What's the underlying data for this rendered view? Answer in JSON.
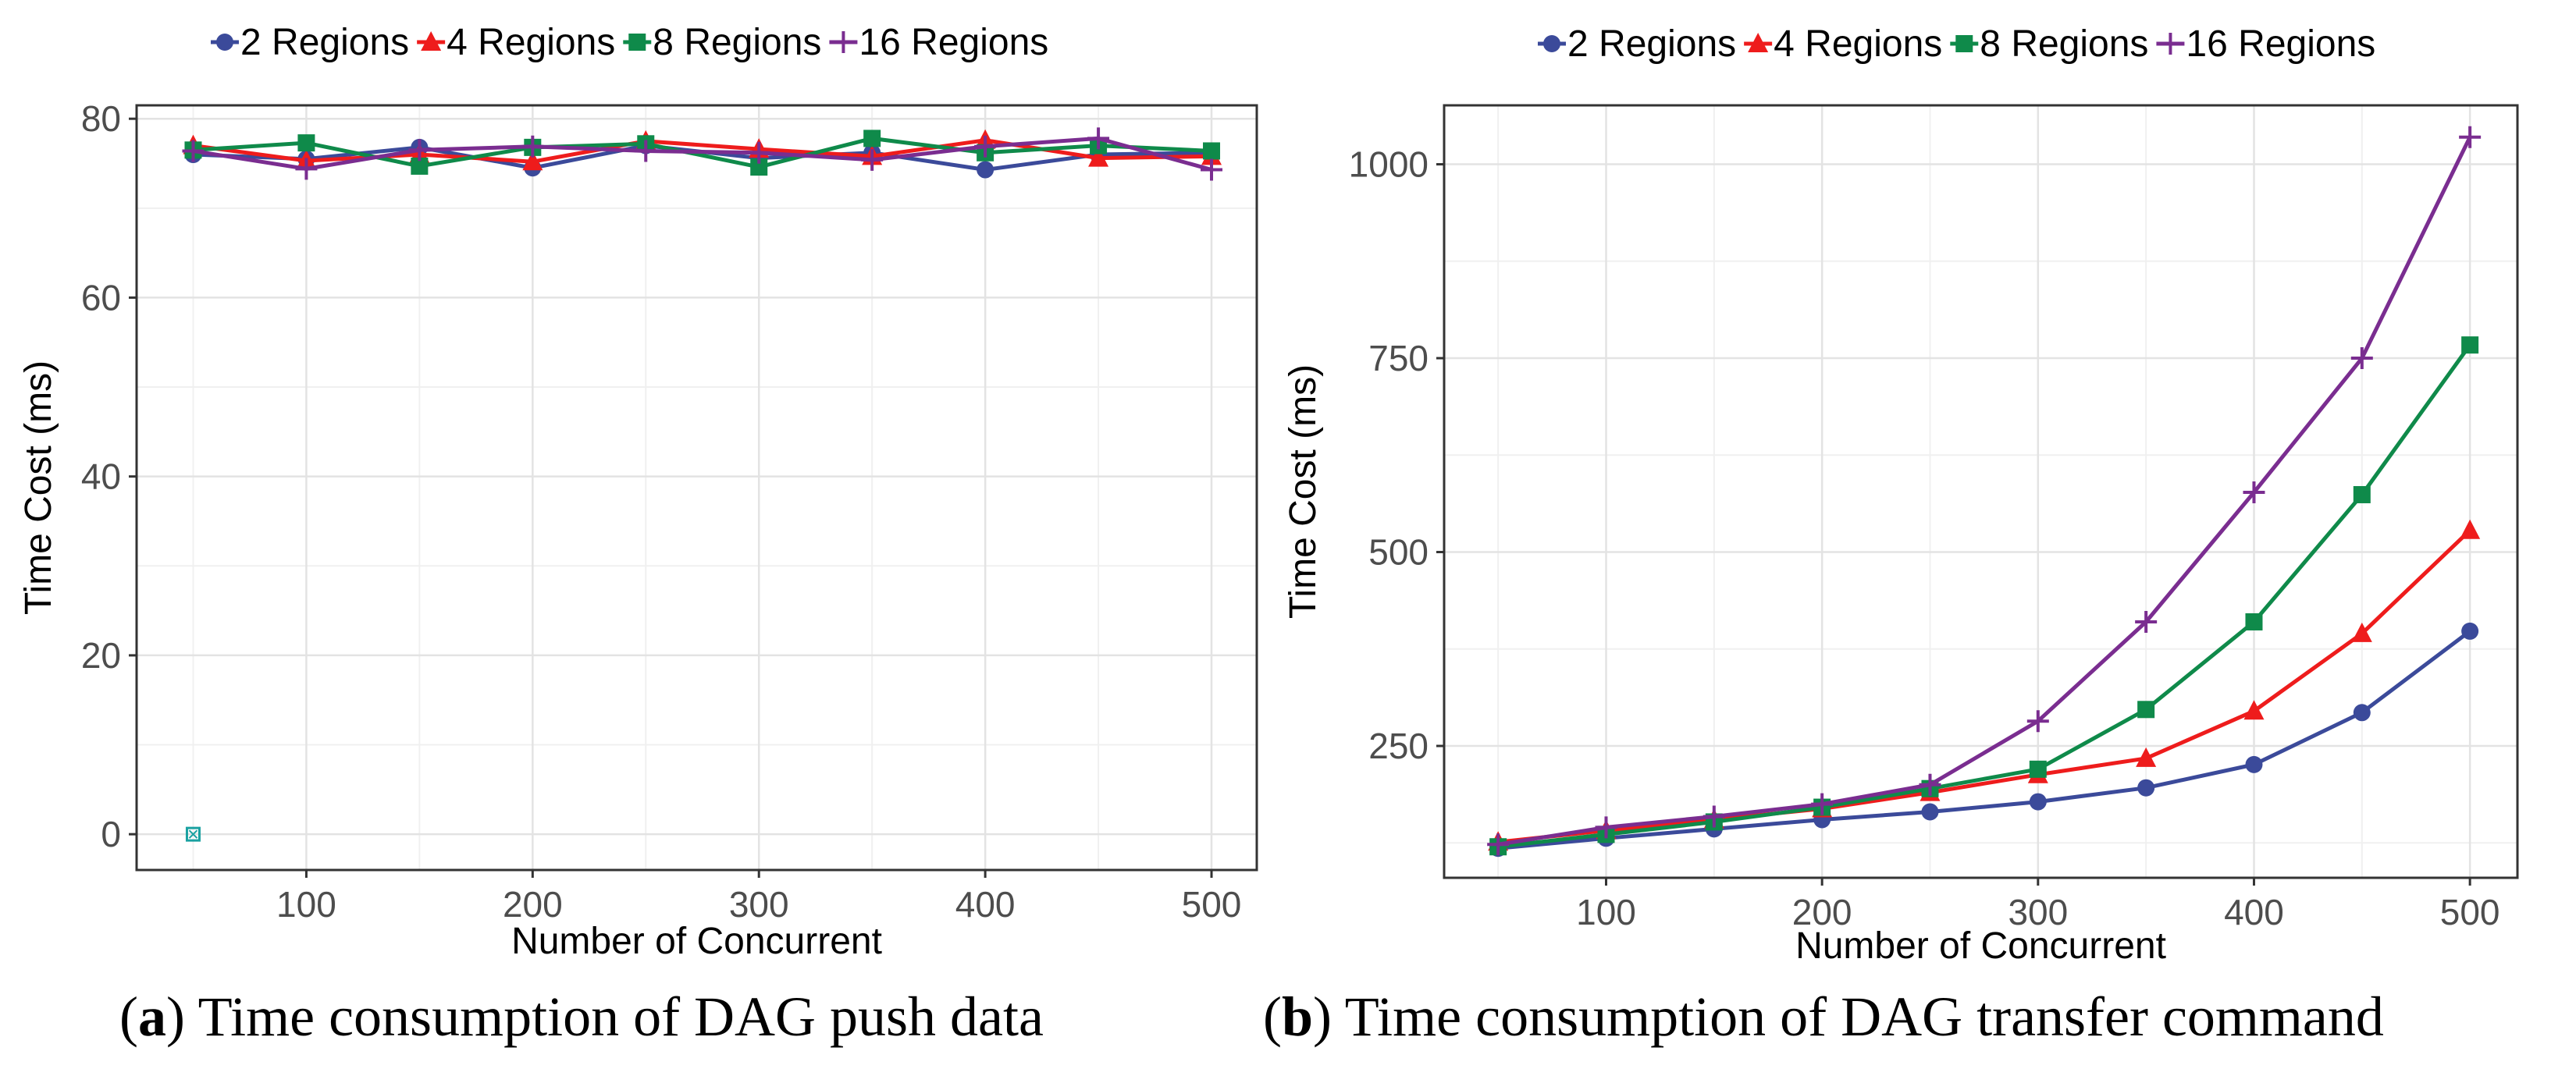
{
  "chart_data": [
    {
      "id": "a",
      "type": "line",
      "caption_letter": "a",
      "caption_text": "Time consumption of DAG push data",
      "xlabel": "Number of Concurrent",
      "ylabel": "Time Cost (ms)",
      "xlim": [
        25,
        520
      ],
      "ylim": [
        -4,
        81.5
      ],
      "xticks": [
        100,
        200,
        300,
        400,
        500
      ],
      "yticks": [
        0,
        20,
        40,
        60,
        80
      ],
      "legend_position": "top",
      "x": [
        50,
        100,
        150,
        200,
        250,
        300,
        350,
        400,
        450,
        500
      ],
      "series": [
        {
          "name": "2 Regions",
          "color": "#3b4a9a",
          "marker": "circle",
          "values": [
            76.0,
            75.5,
            76.8,
            74.5,
            77.0,
            75.6,
            76.2,
            74.3,
            76.0,
            76.2
          ]
        },
        {
          "name": "4 Regions",
          "color": "#ee1c1c",
          "marker": "triangle",
          "values": [
            77.0,
            75.3,
            76.0,
            75.2,
            77.5,
            76.6,
            75.8,
            77.6,
            75.6,
            75.8
          ]
        },
        {
          "name": "8 Regions",
          "color": "#0f8a4a",
          "marker": "square",
          "values": [
            76.5,
            77.3,
            74.7,
            76.8,
            77.2,
            74.6,
            77.8,
            76.2,
            77.0,
            76.4
          ]
        },
        {
          "name": "16 Regions",
          "color": "#7a2d90",
          "marker": "plus",
          "values": [
            76.4,
            74.4,
            76.5,
            76.9,
            76.4,
            76.2,
            75.4,
            76.9,
            77.8,
            74.3
          ]
        }
      ],
      "annotation_point": {
        "x": 50,
        "y": 0
      }
    },
    {
      "id": "b",
      "type": "line",
      "caption_letter": "b",
      "caption_text": "Time consumption of DAG transfer command",
      "xlabel": "Number of Concurrent",
      "ylabel": "Time Cost (ms)",
      "xlim": [
        25,
        522
      ],
      "ylim": [
        80,
        1076
      ],
      "xticks": [
        100,
        200,
        300,
        400,
        500
      ],
      "yticks": [
        250,
        500,
        750,
        1000
      ],
      "legend_position": "top",
      "x": [
        50,
        100,
        150,
        200,
        250,
        300,
        350,
        400,
        450,
        500
      ],
      "series": [
        {
          "name": "2 Regions",
          "color": "#3b4a9a",
          "marker": "circle",
          "values": [
            118,
            131,
            143,
            155,
            165,
            178,
            196,
            226,
            293,
            398
          ]
        },
        {
          "name": "4 Regions",
          "color": "#ee1c1c",
          "marker": "triangle",
          "values": [
            126,
            141,
            155,
            169,
            190,
            213,
            234,
            295,
            395,
            528
          ]
        },
        {
          "name": "8 Regions",
          "color": "#0f8a4a",
          "marker": "square",
          "values": [
            120,
            136,
            152,
            171,
            195,
            220,
            297,
            410,
            574,
            767
          ]
        },
        {
          "name": "16 Regions",
          "color": "#7a2d90",
          "marker": "plus",
          "values": [
            123,
            145,
            159,
            175,
            200,
            282,
            410,
            577,
            750,
            1035
          ]
        }
      ]
    }
  ]
}
